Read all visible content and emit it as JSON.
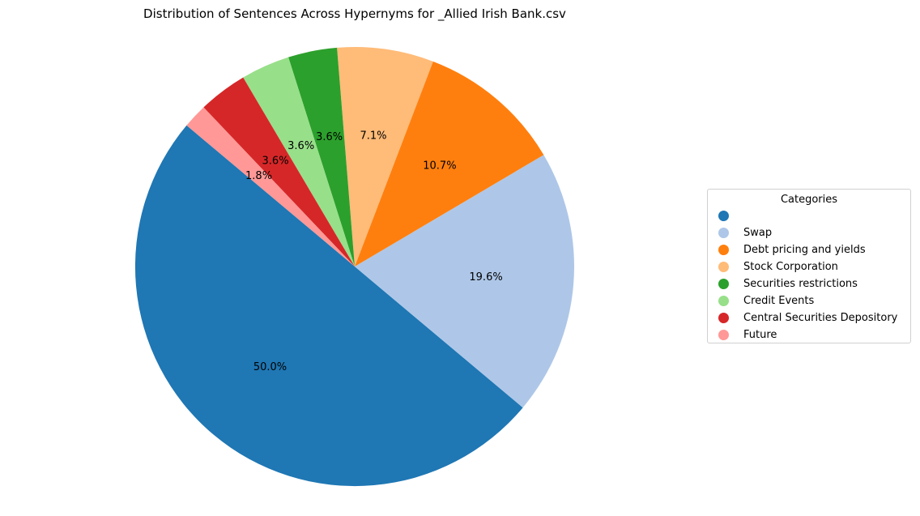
{
  "chart_data": {
    "type": "pie",
    "title": "Distribution of Sentences Across Hypernyms for _Allied Irish Bank.csv",
    "legend_title": "Categories",
    "legend_position": "right",
    "start_angle": 140,
    "direction": "counterclockwise",
    "slices": [
      {
        "label": "",
        "value": 50.0,
        "pct_label": "50.0%",
        "color": "#1f77b4"
      },
      {
        "label": "Swap",
        "value": 19.6,
        "pct_label": "19.6%",
        "color": "#aec7e8"
      },
      {
        "label": "Debt pricing and yields",
        "value": 10.7,
        "pct_label": "10.7%",
        "color": "#ff7f0e"
      },
      {
        "label": "Stock Corporation",
        "value": 7.1,
        "pct_label": "7.1%",
        "color": "#ffbb78"
      },
      {
        "label": "Securities restrictions",
        "value": 3.6,
        "pct_label": "3.6%",
        "color": "#2ca02c"
      },
      {
        "label": "Credit Events",
        "value": 3.6,
        "pct_label": "3.6%",
        "color": "#98df8a"
      },
      {
        "label": "Central Securities Depository",
        "value": 3.6,
        "pct_label": "3.6%",
        "color": "#d62728"
      },
      {
        "label": "Future",
        "value": 1.8,
        "pct_label": "1.8%",
        "color": "#ff9896"
      }
    ]
  }
}
